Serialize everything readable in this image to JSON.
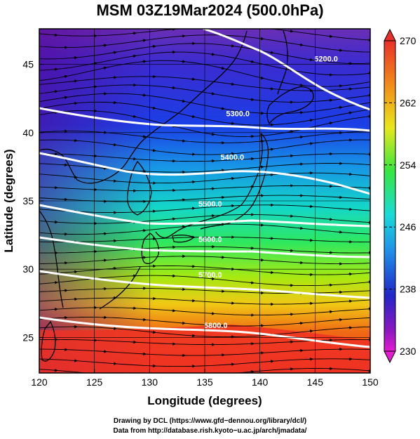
{
  "title": "MSM 03Z19Mar2024 (500.0hPa)",
  "colors": {
    "land_outline": "#000000",
    "contour": "#ffffff",
    "streamline": "#000000"
  },
  "colorbar": {
    "min": 230,
    "max": 270,
    "tick_labels": [
      "270",
      "262",
      "254",
      "246",
      "238",
      "230"
    ],
    "tick_values": [
      270,
      262,
      254,
      246,
      238,
      230
    ]
  },
  "chart_data": {
    "type": "heatmap",
    "title": "MSM 03Z19Mar2024 (500.0hPa)",
    "xlabel": "Longitude (degrees)",
    "ylabel": "Latitude  (degrees)",
    "xlim": [
      120,
      150
    ],
    "ylim": [
      22.4,
      47.6
    ],
    "x_ticks": [
      "120",
      "125",
      "130",
      "135",
      "140",
      "145",
      "150"
    ],
    "y_ticks": [
      "25",
      "30",
      "35",
      "40",
      "45"
    ],
    "x_tick_values": [
      120,
      125,
      130,
      135,
      140,
      145,
      150
    ],
    "y_tick_values": [
      25,
      30,
      35,
      40,
      45
    ],
    "grid": true,
    "contour_levels": [
      {
        "label": "5200.0",
        "lon": 146.0,
        "lat": 45.2
      },
      {
        "label": "5300.0",
        "lon": 138.0,
        "lat": 41.2
      },
      {
        "label": "5400.0",
        "lon": 137.5,
        "lat": 38.0
      },
      {
        "label": "5500.0",
        "lon": 135.5,
        "lat": 34.6
      },
      {
        "label": "5600.0",
        "lon": 135.5,
        "lat": 32.0
      },
      {
        "label": "5700.0",
        "lon": 135.5,
        "lat": 29.4
      },
      {
        "label": "5800.0",
        "lon": 136.0,
        "lat": 25.7
      }
    ]
  },
  "credits": {
    "line1": "Drawing by DCL (https://www.gfd−dennou.org/library/dcl/)",
    "line2": "Data from http://database.rish.kyoto−u.ac.jp/arch/jmadata/"
  }
}
